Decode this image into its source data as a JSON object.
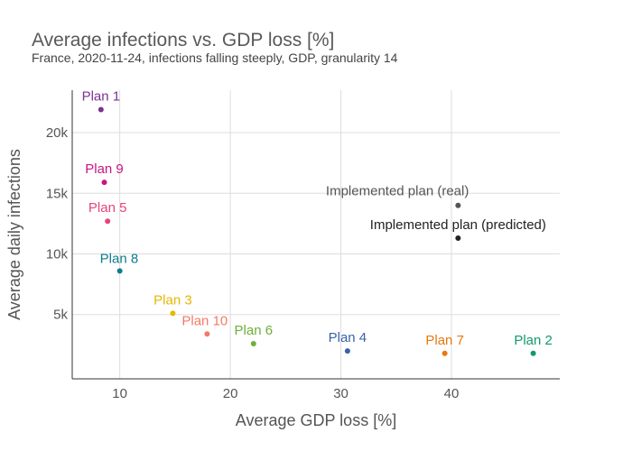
{
  "chart_data": {
    "type": "scatter",
    "title": "Average infections vs. GDP loss [%]",
    "subtitle": "France, 2020-11-24, infections falling steeply, GDP, granularity 14",
    "xlabel": "Average GDP loss [%]",
    "ylabel": "Average daily infections",
    "xlim": [
      5.7,
      49.8
    ],
    "ylim": [
      -300,
      23500
    ],
    "xticks": [
      10,
      20,
      30,
      40
    ],
    "xtick_labels": [
      "10",
      "20",
      "30",
      "40"
    ],
    "yticks": [
      5000,
      10000,
      15000,
      20000
    ],
    "ytick_labels": [
      "5k",
      "10k",
      "15k",
      "20k"
    ],
    "grid": true,
    "legend": "none",
    "points": [
      {
        "label": "Plan 1",
        "x": 8.3,
        "y": 21900,
        "color": "#7b3294",
        "anchor": "middle",
        "dy": -10
      },
      {
        "label": "Plan 9",
        "x": 8.6,
        "y": 15900,
        "color": "#c71585",
        "anchor": "middle",
        "dy": -10
      },
      {
        "label": "Plan 5",
        "x": 8.9,
        "y": 12700,
        "color": "#e7447a",
        "anchor": "middle",
        "dy": -10
      },
      {
        "label": "Plan 8",
        "x": 10.0,
        "y": 8600,
        "color": "#0e7d8f",
        "anchor": "start",
        "dx": -22,
        "dy": -9
      },
      {
        "label": "Plan 3",
        "x": 14.8,
        "y": 5100,
        "color": "#e6b800",
        "anchor": "middle",
        "dy": -10
      },
      {
        "label": "Plan 10",
        "x": 17.9,
        "y": 3400,
        "color": "#f47a68",
        "anchor": "start",
        "dx": -28,
        "dy": -10
      },
      {
        "label": "Plan 6",
        "x": 22.1,
        "y": 2600,
        "color": "#6fae3b",
        "anchor": "middle",
        "dy": -10
      },
      {
        "label": "Plan 4",
        "x": 30.6,
        "y": 2000,
        "color": "#3863a8",
        "anchor": "middle",
        "dy": -10
      },
      {
        "label": "Plan 7",
        "x": 39.4,
        "y": 1800,
        "color": "#e8780d",
        "anchor": "middle",
        "dy": -10
      },
      {
        "label": "Plan 2",
        "x": 47.4,
        "y": 1800,
        "color": "#109a6c",
        "anchor": "middle",
        "dy": -10
      },
      {
        "label": "Implemented plan (real)",
        "x": 40.6,
        "y": 14000,
        "color": "#555555",
        "anchor": "end",
        "dx": 12,
        "dy": -11
      },
      {
        "label": "Implemented plan (predicted)",
        "x": 40.6,
        "y": 11300,
        "color": "#222222",
        "anchor": "middle",
        "dy": -10
      }
    ]
  }
}
